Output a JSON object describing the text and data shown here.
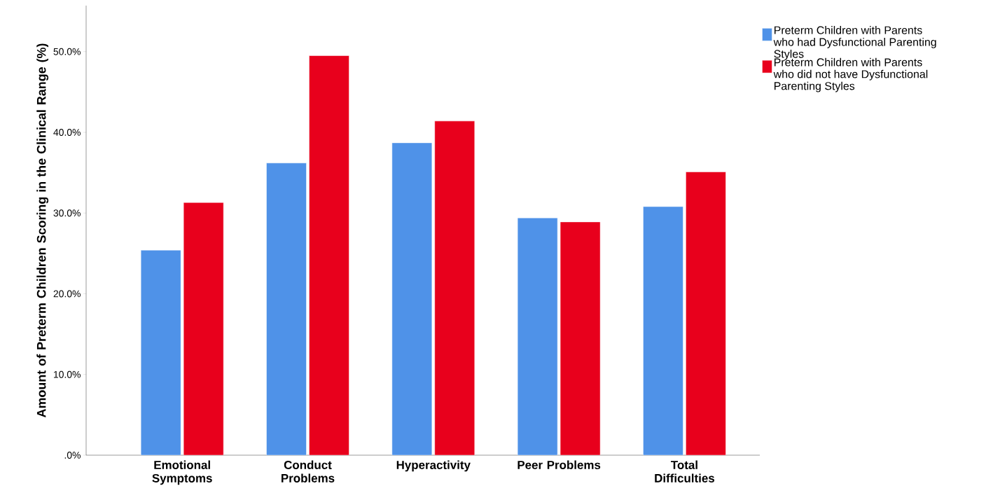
{
  "chart_data": {
    "type": "bar",
    "ylabel": "Amount of Preterm Children Scoring in the Clinical Range (%)",
    "categories": [
      "Emotional Symptoms",
      "Conduct Problems",
      "Hyperactivity",
      "Peer Problems",
      "Total Difficulties"
    ],
    "series": [
      {
        "name": "Preterm Children with Parents who had Dysfunctional Parenting Styles",
        "color": "#4f92e8",
        "values": [
          25.4,
          36.2,
          38.7,
          29.4,
          30.8
        ]
      },
      {
        "name": "Preterm Children with Parents who did not have Dysfunctional Parenting Styles",
        "color": "#e8001c",
        "values": [
          31.3,
          49.5,
          41.4,
          28.9,
          35.1
        ]
      }
    ],
    "ylim": [
      0,
      55.7
    ],
    "yticks": [
      {
        "value": 0,
        "label": ".0%"
      },
      {
        "value": 10,
        "label": "10.0%"
      },
      {
        "value": 20,
        "label": "20.0%"
      },
      {
        "value": 30,
        "label": "30.0%"
      },
      {
        "value": 40,
        "label": "40.0%"
      },
      {
        "value": 50,
        "label": "50.0%"
      }
    ],
    "grid": false,
    "legend": "right"
  }
}
